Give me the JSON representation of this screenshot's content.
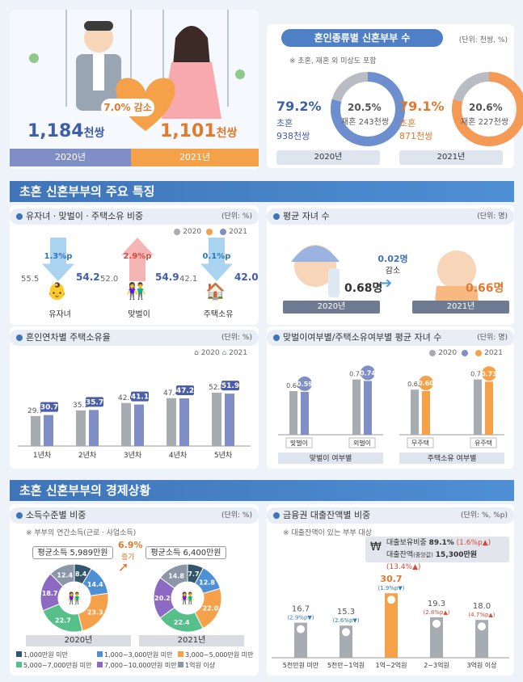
{
  "top": {
    "decrease_label": "7.0% 감소",
    "year2020": {
      "value": "1,184",
      "unit": "천쌍",
      "label": "2020년"
    },
    "year2021": {
      "value": "1,101",
      "unit": "천쌍",
      "label": "2021년"
    }
  },
  "marriage_type": {
    "title": "혼인종류별 신혼부부 수",
    "unit": "(단위: 천쌍, %)",
    "note": "※ 초혼, 재혼 외 미상도 포함",
    "y2020": {
      "first_pct": "79.2%",
      "first_label": "초혼",
      "first_count": "938천쌍",
      "re_pct": "20.5%",
      "re_text": "재혼 243천쌍",
      "year": "2020년"
    },
    "y2021": {
      "first_pct": "79.1%",
      "first_label": "초혼",
      "first_count": "871천쌍",
      "re_pct": "20.6%",
      "re_text": "재혼 227천쌍",
      "year": "2021년"
    },
    "colors": {
      "y2020": "#6d8fd0",
      "y2021": "#f59a54",
      "gray": "#b9bcc3"
    }
  },
  "features_title": "초혼 신혼부부의 주요 특징",
  "ratio_box": {
    "title": "유자녀ㆍ맞벌이ㆍ주택소유 비중",
    "unit": "(단위: %)",
    "legend": [
      "2020",
      "2021"
    ],
    "items": [
      {
        "label": "유자녀",
        "v2020": "55.5",
        "v2021": "54.2",
        "delta": "1.3%p"
      },
      {
        "label": "맞벌이",
        "v2020": "52.0",
        "v2021": "54.9",
        "delta": "2.9%p"
      },
      {
        "label": "주택소유",
        "v2020": "42.1",
        "v2021": "42.0",
        "delta": "0.1%p"
      }
    ]
  },
  "children_box": {
    "title": "평균 자녀 수",
    "unit": "(단위: 명)",
    "v2020": "0.68명",
    "label2020": "2020년",
    "v2021": "0.66명",
    "label2021": "2021년",
    "delta": "0.02명",
    "delta_label": "감소"
  },
  "chart_data": [
    {
      "type": "bar",
      "title": "혼인연차별 주택소유율",
      "unit": "(단위: %)",
      "categories": [
        "1년차",
        "2년차",
        "3년차",
        "4년차",
        "5년차"
      ],
      "series": [
        {
          "name": "2020",
          "values": [
            29.7,
            35.3,
            42.6,
            47.4,
            52.8
          ]
        },
        {
          "name": "2021",
          "values": [
            30.7,
            35.7,
            41.1,
            47.2,
            51.9
          ]
        }
      ]
    },
    {
      "type": "bar",
      "title": "맞벌이여부별/주택소유여부별 평균 자녀 수",
      "unit": "(단위: 명)",
      "groups": [
        {
          "caption": "맞벌이 여부별",
          "categories": [
            "맞벌이",
            "외벌이"
          ],
          "v2020": [
            0.6,
            0.76
          ],
          "v2021": [
            0.59,
            0.74
          ]
        },
        {
          "caption": "주택소유 여부별",
          "categories": [
            "무주택",
            "유주택"
          ],
          "v2020": [
            0.62,
            0.76
          ],
          "v2021": [
            0.6,
            0.73
          ]
        }
      ],
      "legend": [
        "2020",
        "2021"
      ]
    },
    {
      "type": "pie",
      "title": "소득수준별 비중",
      "unit": "(단위: %)",
      "note": "※ 부부의 연간소득(근로ㆍ사업소득)",
      "increase": "6.9%",
      "increase_label": "증가",
      "pies": [
        {
          "year": "2020년",
          "avg": "평균소득 5,989만원",
          "values": [
            8.4,
            14.4,
            23.3,
            22.7,
            18.7,
            12.4
          ]
        },
        {
          "year": "2021년",
          "avg": "평균소득 6,400만원",
          "values": [
            7.7,
            12.8,
            22.0,
            22.4,
            20.2,
            14.8
          ]
        }
      ],
      "legend": [
        "1,000만원 미만",
        "1,000~3,000만원 미만",
        "3,000~5,000만원 미만",
        "5,000~7,000만원 미만",
        "7,000~10,000만원 미만",
        "1억원 이상"
      ],
      "colors": [
        "#33566f",
        "#4f8fd4",
        "#f5a14a",
        "#57bf8a",
        "#8c6ac4",
        "#8a97a6"
      ]
    },
    {
      "type": "bar",
      "title": "금융권 대출잔액별 비중",
      "unit": "(단위: %, %p)",
      "note": "※ 대출잔액이 있는 부부 대상",
      "categories": [
        "5천만원 미만",
        "5천만~1억원",
        "1억~2억원",
        "2~3억원",
        "3억원 이상"
      ],
      "values": [
        16.7,
        15.3,
        30.7,
        19.3,
        18.0
      ],
      "deltas": [
        "(2.9%p▼)",
        "(2.6%p▼)",
        "(1.9%p▼)",
        "(2.8%p▲)",
        "(4.7%p▲)"
      ],
      "info": {
        "ratio_label": "대출보유비중",
        "ratio": "89.1%",
        "ratio_delta": "(1.6%p▲)",
        "amount_label": "대출잔액",
        "amount_sub": "(중앙값)",
        "amount": "15,300만원",
        "amount_delta": "(13.4%▲)"
      }
    }
  ],
  "economy_title": "초혼 신혼부부의 경제상황"
}
